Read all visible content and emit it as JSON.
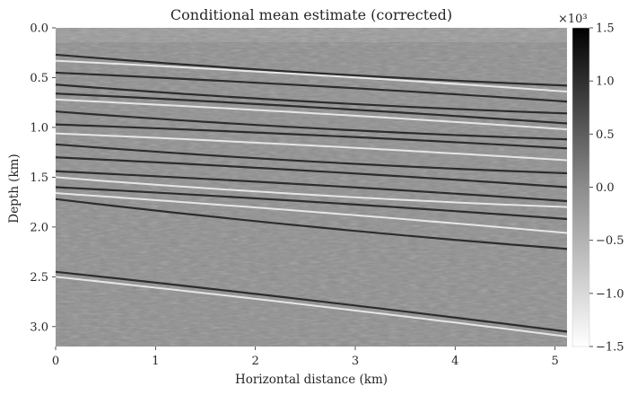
{
  "chart_data": {
    "type": "heatmap",
    "title": "Conditional mean estimate (corrected)",
    "xlabel": "Horizontal distance (km)",
    "ylabel": "Depth (km)",
    "xlim": [
      0,
      5.12
    ],
    "ylim": [
      3.2,
      0
    ],
    "x_ticks": [
      0,
      1,
      2,
      3,
      4,
      5
    ],
    "y_ticks": [
      0.0,
      0.5,
      1.0,
      1.5,
      2.0,
      2.5,
      3.0
    ],
    "y_tick_labels": [
      "0.0",
      "0.5",
      "1.0",
      "1.5",
      "2.0",
      "2.5",
      "3.0"
    ],
    "colorbar": {
      "range": [
        -1.5,
        1.5
      ],
      "multiplier": "×10³",
      "ticks": [
        1.5,
        1.0,
        0.5,
        0.0,
        -0.5,
        -1.0,
        -1.5
      ],
      "tick_labels": [
        "1.5",
        "1.0",
        "0.5",
        "0.0",
        "−0.5",
        "−1.0",
        "−1.5"
      ],
      "colormap": "gray_r",
      "color_max": "#000000",
      "color_min": "#ffffff"
    },
    "grid": false,
    "description_free_note": "",
    "reflectors": [
      {
        "depth_at_x0": 0.27,
        "depth_at_xmax": 0.58,
        "polarity": "dark"
      },
      {
        "depth_at_x0": 0.33,
        "depth_at_xmax": 0.64,
        "polarity": "light"
      },
      {
        "depth_at_x0": 0.45,
        "depth_at_xmax": 0.74,
        "polarity": "dark"
      },
      {
        "depth_at_x0": 0.57,
        "depth_at_xmax": 0.86,
        "polarity": "dark"
      },
      {
        "depth_at_x0": 0.66,
        "depth_at_xmax": 0.96,
        "polarity": "dark"
      },
      {
        "depth_at_x0": 0.72,
        "depth_at_xmax": 1.02,
        "polarity": "light"
      },
      {
        "depth_at_x0": 0.84,
        "depth_at_xmax": 1.12,
        "polarity": "dark"
      },
      {
        "depth_at_x0": 0.97,
        "depth_at_xmax": 1.21,
        "polarity": "dark"
      },
      {
        "depth_at_x0": 1.06,
        "depth_at_xmax": 1.33,
        "polarity": "light"
      },
      {
        "depth_at_x0": 1.17,
        "depth_at_xmax": 1.46,
        "polarity": "dark"
      },
      {
        "depth_at_x0": 1.3,
        "depth_at_xmax": 1.6,
        "polarity": "dark"
      },
      {
        "depth_at_x0": 1.44,
        "depth_at_xmax": 1.74,
        "polarity": "dark"
      },
      {
        "depth_at_x0": 1.5,
        "depth_at_xmax": 1.8,
        "polarity": "light"
      },
      {
        "depth_at_x0": 1.6,
        "depth_at_xmax": 1.92,
        "polarity": "dark"
      },
      {
        "depth_at_x0": 1.66,
        "depth_at_xmax": 2.06,
        "polarity": "light"
      },
      {
        "depth_at_x0": 1.72,
        "depth_at_xmax": 2.22,
        "polarity": "dark"
      },
      {
        "depth_at_x0": 2.45,
        "depth_at_xmax": 3.05,
        "polarity": "dark"
      },
      {
        "depth_at_x0": 2.5,
        "depth_at_xmax": 3.1,
        "polarity": "light"
      }
    ]
  }
}
